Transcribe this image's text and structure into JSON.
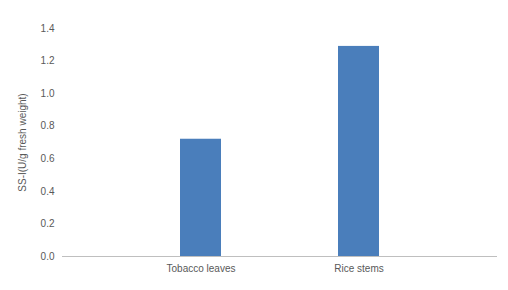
{
  "chart_data": {
    "type": "bar",
    "y_label": "SS-I(U/g fresh weight)",
    "categories": [
      "Tobacco leaves",
      "Rice stems"
    ],
    "values": [
      0.72,
      1.29
    ],
    "color": "#4a7ebb",
    "ylim": [
      0,
      1.4
    ],
    "yticks": [
      {
        "value": 0,
        "label": "0.0"
      },
      0.2,
      0.4,
      0.6,
      0.8,
      {
        "value": 1,
        "label": "1.0"
      },
      1.2,
      1.4
    ],
    "grid": false
  }
}
